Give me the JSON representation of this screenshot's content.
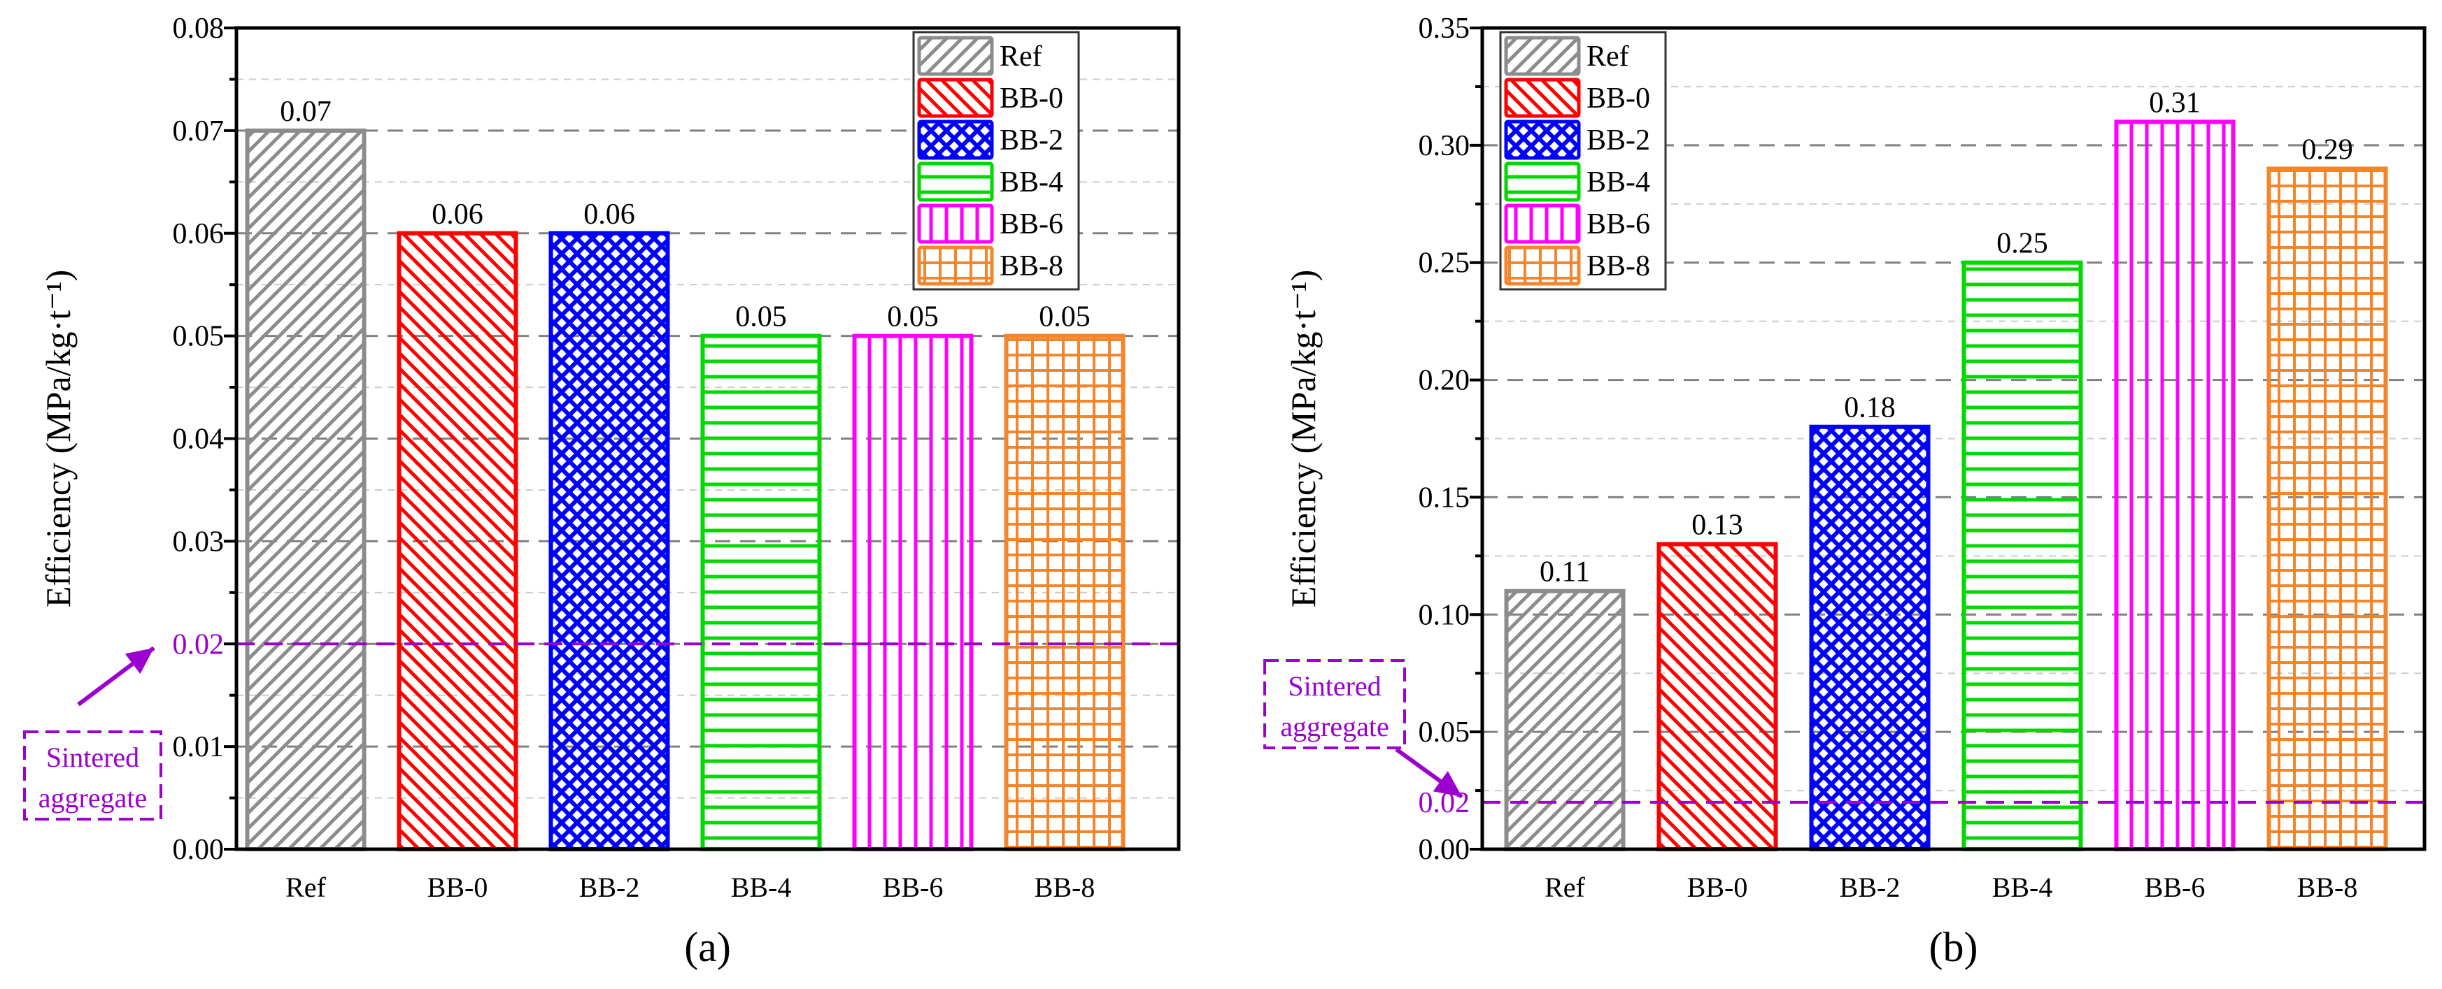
{
  "colors": {
    "Ref": "#8c8c8c",
    "BB-0": "#ff0000",
    "BB-2": "#0000ff",
    "BB-4": "#00d800",
    "BB-6": "#ff00ff",
    "BB-8": "#f5852a",
    "reference_line": "#9b00d0",
    "grid": "#808080"
  },
  "chart_data": [
    {
      "type": "bar",
      "panel_label": "(a)",
      "categories": [
        "Ref",
        "BB-0",
        "BB-2",
        "BB-4",
        "BB-6",
        "BB-8"
      ],
      "values": [
        0.07,
        0.06,
        0.06,
        0.05,
        0.05,
        0.05
      ],
      "value_labels": [
        "0.07",
        "0.06",
        "0.06",
        "0.05",
        "0.05",
        "0.05"
      ],
      "patterns": [
        "diag-right",
        "diag-left",
        "crosshatch",
        "horizontal",
        "vertical",
        "grid"
      ],
      "ylabel": "Efficiency (MPa/kg·t⁻¹)",
      "xlabel": "",
      "ylim": [
        0,
        0.08
      ],
      "yticks": [
        "0.00",
        "0.01",
        "0.02",
        "0.03",
        "0.04",
        "0.05",
        "0.06",
        "0.07",
        "0.08"
      ],
      "ytick_step": 0.01,
      "grid": true,
      "legend": {
        "position": "top-right",
        "entries": [
          "Ref",
          "BB-0",
          "BB-2",
          "BB-4",
          "BB-6",
          "BB-8"
        ]
      },
      "reference_line": {
        "value": 0.02,
        "label_line1": "Sintered",
        "label_line2": "aggregate",
        "annotation_side": "below-left"
      }
    },
    {
      "type": "bar",
      "panel_label": "(b)",
      "categories": [
        "Ref",
        "BB-0",
        "BB-2",
        "BB-4",
        "BB-6",
        "BB-8"
      ],
      "values": [
        0.11,
        0.13,
        0.18,
        0.25,
        0.31,
        0.29
      ],
      "value_labels": [
        "0.11",
        "0.13",
        "0.18",
        "0.25",
        "0.31",
        "0.29"
      ],
      "patterns": [
        "diag-right",
        "diag-left",
        "crosshatch",
        "horizontal",
        "vertical",
        "grid"
      ],
      "ylabel": "Efficiency (MPa/kg·t⁻¹)",
      "xlabel": "",
      "ylim": [
        0,
        0.35
      ],
      "yticks": [
        "0.00",
        "0.05",
        "0.10",
        "0.15",
        "0.20",
        "0.25",
        "0.30",
        "0.35"
      ],
      "ytick_step": 0.05,
      "extra_ytick_label": "0.02",
      "grid": true,
      "legend": {
        "position": "top-left",
        "entries": [
          "Ref",
          "BB-0",
          "BB-2",
          "BB-4",
          "BB-6",
          "BB-8"
        ]
      },
      "reference_line": {
        "value": 0.02,
        "label_line1": "Sintered",
        "label_line2": "aggregate",
        "annotation_side": "above-left"
      }
    }
  ]
}
